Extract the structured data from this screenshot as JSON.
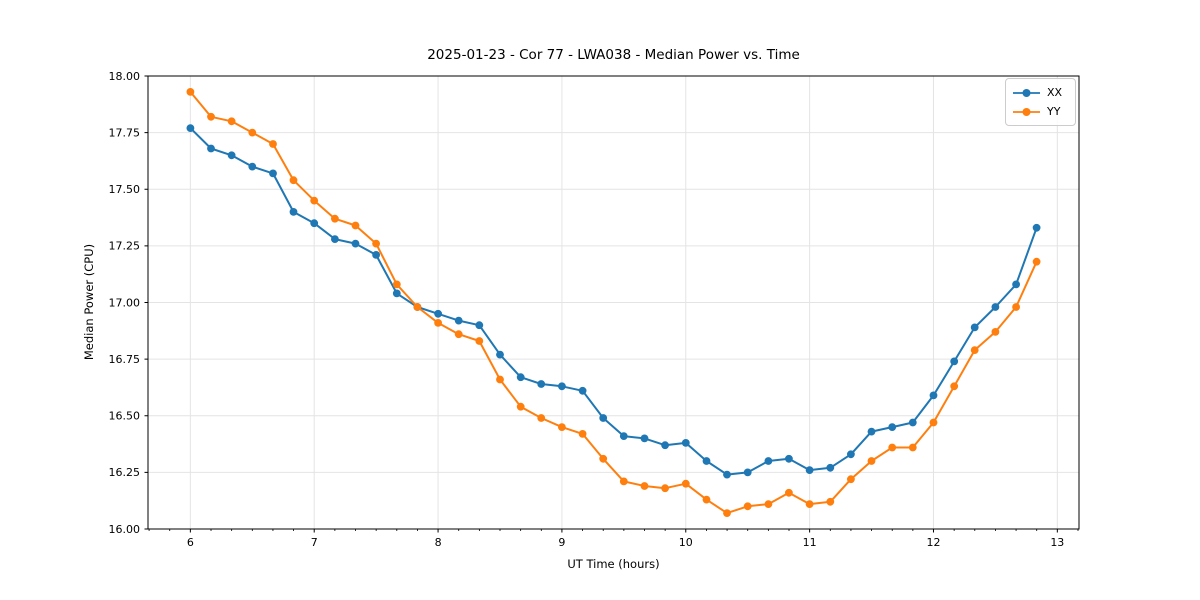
{
  "chart_data": {
    "type": "line",
    "title": "2025-01-23 - Cor 77 - LWA038 - Median Power vs. Time",
    "xlabel": "UT Time (hours)",
    "ylabel": "Median Power (CPU)",
    "xlim": [
      5.658,
      13.175
    ],
    "ylim": [
      16.0,
      18.0
    ],
    "x_tick_labels": [
      "6",
      "7",
      "8",
      "9",
      "10",
      "11",
      "12",
      "13"
    ],
    "x_ticks": [
      6,
      7,
      8,
      9,
      10,
      11,
      12,
      13
    ],
    "y_tick_labels": [
      "16.00",
      "16.25",
      "16.50",
      "16.75",
      "17.00",
      "17.25",
      "17.50",
      "17.75",
      "18.00"
    ],
    "y_ticks": [
      16.0,
      16.25,
      16.5,
      16.75,
      17.0,
      17.25,
      17.5,
      17.75,
      18.0
    ],
    "x_minor_tick_step": 0.16667,
    "grid": true,
    "legend_position": "upper right",
    "colors": {
      "background": "#ffffff",
      "grid": "#e4e4e4",
      "axis": "#000000"
    },
    "x": [
      6.0,
      6.167,
      6.333,
      6.5,
      6.667,
      6.833,
      7.0,
      7.167,
      7.333,
      7.5,
      7.667,
      7.833,
      8.0,
      8.167,
      8.333,
      8.5,
      8.667,
      8.833,
      9.0,
      9.167,
      9.333,
      9.5,
      9.667,
      9.833,
      10.0,
      10.167,
      10.333,
      10.5,
      10.667,
      10.833,
      11.0,
      11.167,
      11.333,
      11.5,
      11.667,
      11.833,
      12.0,
      12.167,
      12.333,
      12.5,
      12.667,
      12.833
    ],
    "series": [
      {
        "name": "XX",
        "color": "#1f77b4",
        "values": [
          17.77,
          17.68,
          17.65,
          17.6,
          17.57,
          17.4,
          17.35,
          17.28,
          17.26,
          17.21,
          17.04,
          16.98,
          16.95,
          16.92,
          16.9,
          16.77,
          16.67,
          16.64,
          16.63,
          16.61,
          16.49,
          16.41,
          16.4,
          16.37,
          16.38,
          16.3,
          16.24,
          16.25,
          16.3,
          16.31,
          16.26,
          16.27,
          16.33,
          16.43,
          16.45,
          16.47,
          16.59,
          16.74,
          16.89,
          16.98,
          17.08,
          17.33
        ]
      },
      {
        "name": "YY",
        "color": "#ff7f0e",
        "values": [
          17.93,
          17.82,
          17.8,
          17.75,
          17.7,
          17.54,
          17.45,
          17.37,
          17.34,
          17.26,
          17.08,
          16.98,
          16.91,
          16.86,
          16.83,
          16.66,
          16.54,
          16.49,
          16.45,
          16.42,
          16.31,
          16.21,
          16.19,
          16.18,
          16.2,
          16.13,
          16.07,
          16.1,
          16.11,
          16.16,
          16.11,
          16.12,
          16.22,
          16.3,
          16.36,
          16.36,
          16.47,
          16.63,
          16.79,
          16.87,
          16.98,
          17.18
        ]
      }
    ]
  }
}
